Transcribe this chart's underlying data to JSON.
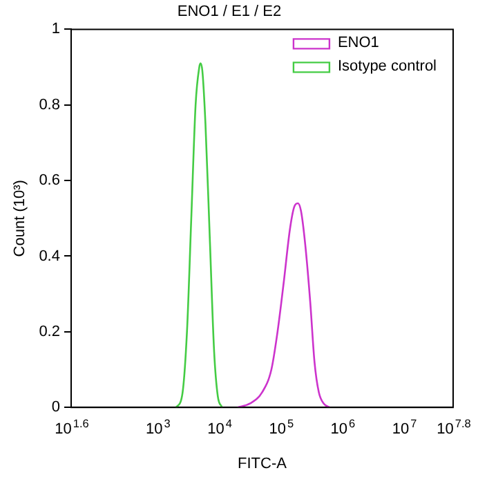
{
  "chart_data": {
    "type": "line",
    "title": "ENO1 / E1 / E2",
    "xlabel": "FITC-A",
    "ylabel": "Count (10³)",
    "log": "x",
    "grid": false,
    "legend": "top right",
    "marker": "none",
    "line_style": "solid",
    "xlim": [
      39.81,
      63095734
    ],
    "xticks": [
      {
        "value": 39.81,
        "label": "10$^{1.6}$"
      },
      {
        "value": 1000,
        "label": "10$^{3}$"
      },
      {
        "value": 10000,
        "label": "10$^{4}$"
      },
      {
        "value": 100000,
        "label": "10$^{5}$"
      },
      {
        "value": 1000000,
        "label": "10$^{6}$"
      },
      {
        "value": 10000000,
        "label": "10$^{7}$"
      },
      {
        "value": 63095734,
        "label": "10$^{7.8}$"
      }
    ],
    "ylim": [
      0,
      1
    ],
    "yticks": [
      0,
      0.2,
      0.4,
      0.6,
      0.8,
      1
    ],
    "series": [
      {
        "name": "ENO1",
        "color": "#cc33cc",
        "x": [
          19953,
          31623,
          50119,
          70795,
          89125,
          112202,
          141254,
          165959,
          190546,
          213796,
          251189,
          301995,
          354813,
          416869,
          501187,
          630957
        ],
        "values": [
          0,
          0.01,
          0.04,
          0.1,
          0.2,
          0.33,
          0.47,
          0.53,
          0.54,
          0.52,
          0.43,
          0.28,
          0.12,
          0.04,
          0.01,
          0
        ]
      },
      {
        "name": "Isotype control",
        "color": "#44cc44",
        "x": [
          1995,
          2512,
          3020,
          3548,
          4169,
          4786,
          5012,
          5370,
          6026,
          7079,
          8318,
          9550,
          11220
        ],
        "values": [
          0,
          0.03,
          0.2,
          0.5,
          0.8,
          0.9,
          0.91,
          0.89,
          0.75,
          0.45,
          0.15,
          0.03,
          0
        ]
      }
    ]
  }
}
